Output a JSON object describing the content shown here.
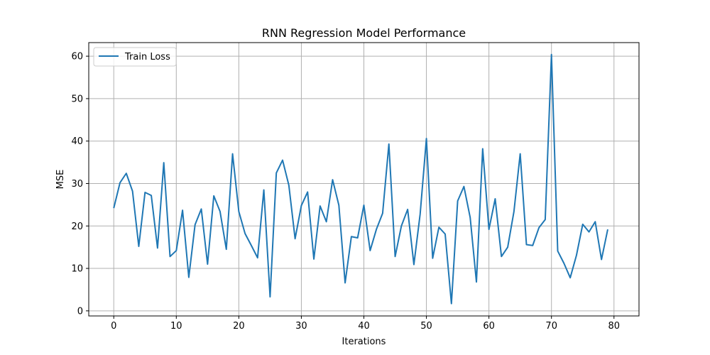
{
  "chart_data": {
    "type": "line",
    "title": "RNN Regression Model Performance",
    "xlabel": "Iterations",
    "ylabel": "MSE",
    "xlim": [
      -4,
      84
    ],
    "ylim": [
      -1.2,
      63.2
    ],
    "xticks": [
      0,
      10,
      20,
      30,
      40,
      50,
      60,
      70,
      80
    ],
    "yticks": [
      0,
      10,
      20,
      30,
      40,
      50,
      60
    ],
    "grid": true,
    "legend_position": "top-left",
    "series": [
      {
        "name": "Train Loss",
        "color": "#1f77b4",
        "x": [
          0,
          1,
          2,
          3,
          4,
          5,
          6,
          7,
          8,
          9,
          10,
          11,
          12,
          13,
          14,
          15,
          16,
          17,
          18,
          19,
          20,
          21,
          22,
          23,
          24,
          25,
          26,
          27,
          28,
          29,
          30,
          31,
          32,
          33,
          34,
          35,
          36,
          37,
          38,
          39,
          40,
          41,
          42,
          43,
          44,
          45,
          46,
          47,
          48,
          49,
          50,
          51,
          52,
          53,
          54,
          55,
          56,
          57,
          58,
          59,
          60,
          61,
          62,
          63,
          64,
          65,
          66,
          67,
          68,
          69,
          70,
          71,
          72,
          73,
          74,
          75,
          76,
          77,
          78,
          79
        ],
        "values": [
          24.2,
          30.2,
          32.4,
          28.2,
          15.2,
          27.9,
          27.2,
          14.8,
          34.9,
          12.8,
          14.2,
          23.7,
          7.9,
          20.3,
          24.0,
          11.0,
          27.1,
          23.4,
          14.5,
          37.0,
          23.4,
          18.2,
          15.4,
          12.5,
          28.5,
          3.3,
          32.5,
          35.5,
          29.6,
          17.0,
          24.8,
          28.0,
          12.2,
          24.7,
          21.0,
          30.9,
          24.9,
          6.6,
          17.5,
          17.2,
          24.9,
          14.2,
          19.2,
          23.0,
          39.3,
          12.8,
          20.0,
          23.9,
          10.9,
          22.8,
          40.6,
          12.4,
          19.7,
          18.1,
          1.7,
          25.9,
          29.3,
          22.0,
          6.8,
          38.2,
          19.2,
          26.4,
          12.8,
          15.0,
          23.4,
          37.0,
          15.6,
          15.4,
          19.6,
          21.5,
          60.4,
          14.1,
          11.2,
          7.8,
          13.1,
          20.4,
          18.6,
          21.0,
          12.1,
          19.2
        ]
      }
    ]
  }
}
